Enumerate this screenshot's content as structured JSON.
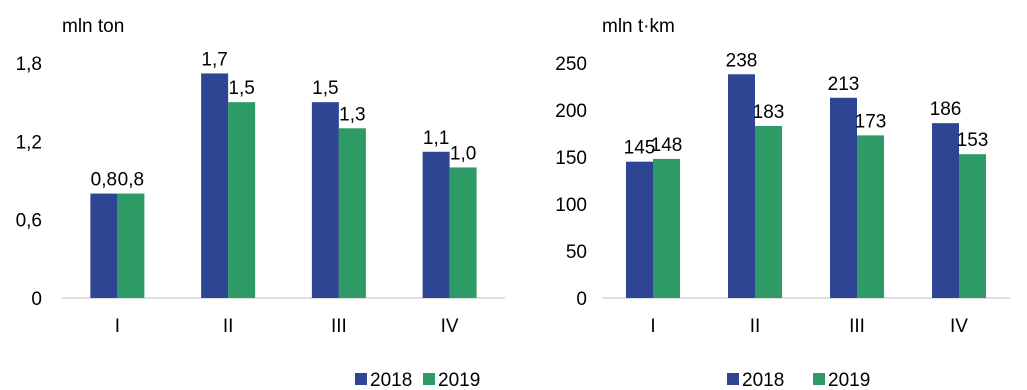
{
  "chart_data": [
    {
      "type": "bar",
      "unit_label": "mln ton",
      "categories": [
        "I",
        "II",
        "III",
        "IV"
      ],
      "ylim": [
        0,
        1.8
      ],
      "yticks": [
        "0",
        "0,6",
        "1,2",
        "1,8"
      ],
      "ytick_values": [
        0,
        0.6,
        1.2,
        1.8
      ],
      "grid": false,
      "legend_position": "bottom",
      "series": [
        {
          "name": "2018",
          "color": "#2e4594",
          "values": [
            0.8,
            1.72,
            1.5,
            1.12
          ],
          "labels": [
            "0,8",
            "1,7",
            "1,5",
            "1,1"
          ]
        },
        {
          "name": "2019",
          "color": "#2e9a66",
          "values": [
            0.8,
            1.5,
            1.3,
            1.0
          ],
          "labels": [
            "0,8",
            "1,5",
            "1,3",
            "1,0"
          ]
        }
      ]
    },
    {
      "type": "bar",
      "unit_label": "mln t·km",
      "categories": [
        "I",
        "II",
        "III",
        "IV"
      ],
      "ylim": [
        0,
        250
      ],
      "yticks": [
        "0",
        "50",
        "100",
        "150",
        "200",
        "250"
      ],
      "ytick_values": [
        0,
        50,
        100,
        150,
        200,
        250
      ],
      "grid": false,
      "legend_position": "bottom",
      "series": [
        {
          "name": "2018",
          "color": "#2e4594",
          "values": [
            145,
            238,
            213,
            186
          ],
          "labels": [
            "145",
            "238",
            "213",
            "186"
          ]
        },
        {
          "name": "2019",
          "color": "#2e9a66",
          "values": [
            148,
            183,
            173,
            153
          ],
          "labels": [
            "148",
            "183",
            "173",
            "153"
          ]
        }
      ]
    }
  ]
}
